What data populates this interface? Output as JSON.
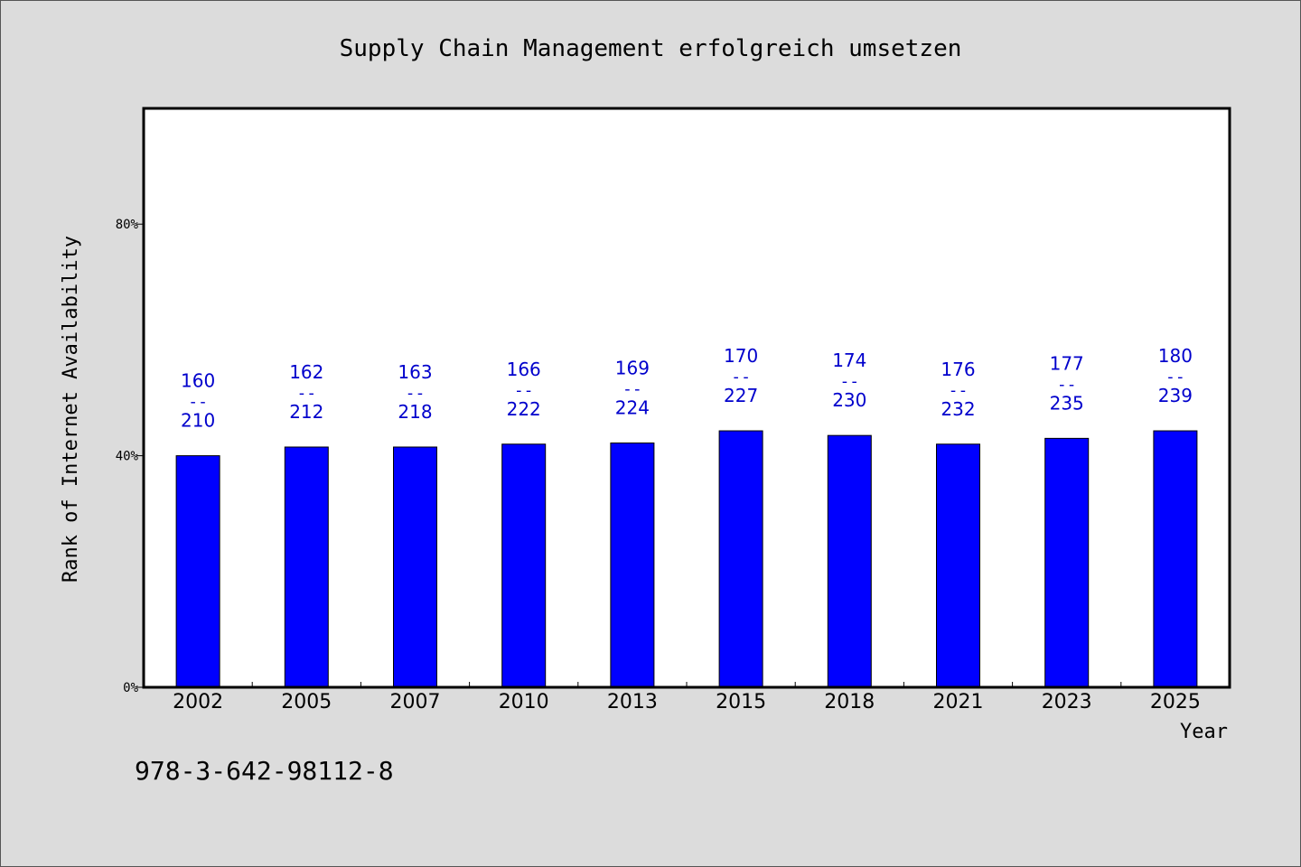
{
  "chart_data": {
    "type": "bar",
    "title": "Supply Chain Management erfolgreich umsetzen",
    "xlabel": "Year",
    "ylabel": "Rank of Internet Availability",
    "categories": [
      "2002",
      "2005",
      "2007",
      "2010",
      "2013",
      "2015",
      "2018",
      "2021",
      "2023",
      "2025"
    ],
    "series": [
      {
        "values": [
          40,
          41.5,
          41.5,
          42,
          42.2,
          44.3,
          43.5,
          42,
          43,
          44.3
        ]
      }
    ],
    "data_labels": [
      {
        "top": "160",
        "sep": "--",
        "bottom": "210"
      },
      {
        "top": "162",
        "sep": "--",
        "bottom": "212"
      },
      {
        "top": "163",
        "sep": "--",
        "bottom": "218"
      },
      {
        "top": "166",
        "sep": "--",
        "bottom": "222"
      },
      {
        "top": "169",
        "sep": "--",
        "bottom": "224"
      },
      {
        "top": "170",
        "sep": "--",
        "bottom": "227"
      },
      {
        "top": "174",
        "sep": "--",
        "bottom": "230"
      },
      {
        "top": "176",
        "sep": "--",
        "bottom": "232"
      },
      {
        "top": "177",
        "sep": "--",
        "bottom": "235"
      },
      {
        "top": "180",
        "sep": "--",
        "bottom": "239"
      }
    ],
    "yticks": [
      0,
      40,
      80
    ],
    "ytick_labels": [
      "0%",
      "40%",
      "80%"
    ],
    "ylim": [
      0,
      100
    ],
    "grid": false,
    "bar_color": "#0000ff",
    "label_color": "#0000cc",
    "background_color": "#dcdcdc",
    "plot_background": "#ffffff",
    "footnote": "978-3-642-98112-8"
  }
}
